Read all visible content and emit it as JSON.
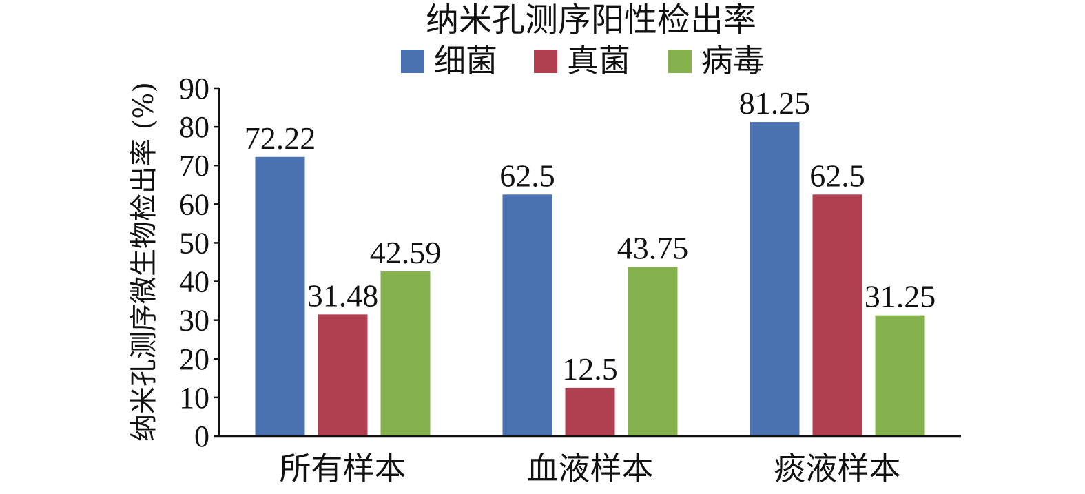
{
  "chart_data": {
    "type": "bar",
    "title": "纳米孔测序阳性检出率",
    "ylabel": "纳米孔测序微生物检出率 (%)",
    "xlabel": "",
    "categories": [
      "所有样本",
      "血液样本",
      "痰液样本"
    ],
    "series": [
      {
        "name": "细菌",
        "color": "#4a72b0",
        "values": [
          72.22,
          62.5,
          81.25
        ],
        "labels": [
          "72.22",
          "62.5",
          "81.25"
        ]
      },
      {
        "name": "真菌",
        "color": "#b0404f",
        "values": [
          31.48,
          12.5,
          62.5
        ],
        "labels": [
          "31.48",
          "12.5",
          "62.5"
        ]
      },
      {
        "name": "病毒",
        "color": "#86b24e",
        "values": [
          42.59,
          43.75,
          31.25
        ],
        "labels": [
          "42.59",
          "43.75",
          "31.25"
        ]
      }
    ],
    "ylim": [
      0,
      90
    ],
    "yticks": [
      0,
      10,
      20,
      30,
      40,
      50,
      60,
      70,
      80,
      90
    ],
    "grid": false,
    "legend_position": "top-center"
  }
}
